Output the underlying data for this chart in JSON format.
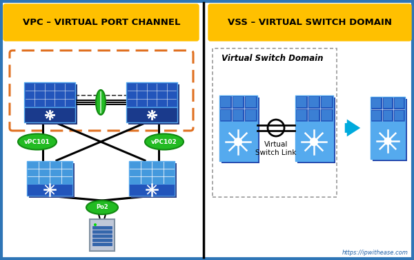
{
  "title_left": "VPC – VIRTUAL PORT CHANNEL",
  "title_right": "VSS – VIRTUAL SWITCH DOMAIN",
  "title_bg": "#FFC000",
  "title_text_color": "#000000",
  "bg_color": "#FFFFFF",
  "border_color": "#2E75B6",
  "label_vpc101": "vPC101",
  "label_vpc102": "vPC102",
  "label_vsl_bottom": "Po2",
  "label_vsd": "Virtual Switch Domain",
  "label_vsl_full": "Virtual\nSwitch Link",
  "url_text": "https://ipwithease.com",
  "switch_dark": "#1A3A8C",
  "switch_mid": "#2255BB",
  "switch_light": "#4499DD",
  "switch_lighter": "#55AAEE",
  "green_color": "#22BB22",
  "green_dark": "#118811",
  "arrow_color": "#00AADD",
  "orange_dashed_color": "#E07020"
}
